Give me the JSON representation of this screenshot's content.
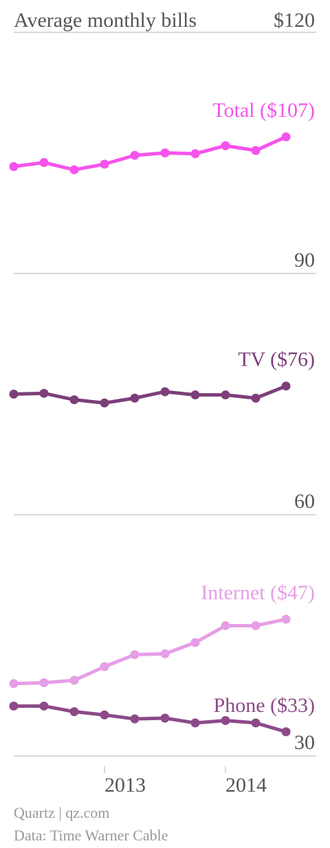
{
  "chart_data": {
    "type": "line",
    "title": "Average monthly bills",
    "categories": [
      null,
      null,
      null,
      "2013",
      null,
      null,
      null,
      "2014",
      null,
      null
    ],
    "series": [
      {
        "name": "Total ($107)",
        "color": "#f553ec",
        "values": [
          103.3,
          103.8,
          102.9,
          103.6,
          104.7,
          105.0,
          104.9,
          105.9,
          105.3,
          107
        ]
      },
      {
        "name": "TV ($76)",
        "color": "#7d3f7a",
        "values": [
          75.0,
          75.1,
          74.3,
          73.9,
          74.5,
          75.3,
          74.9,
          74.9,
          74.5,
          76
        ]
      },
      {
        "name": "Internet ($47)",
        "color": "#e69ee6",
        "values": [
          39.0,
          39.1,
          39.4,
          41.1,
          42.6,
          42.7,
          44.1,
          46.2,
          46.2,
          47
        ]
      },
      {
        "name": "Phone ($33)",
        "color": "#8c4a88",
        "values": [
          36.2,
          36.2,
          35.5,
          35.1,
          34.6,
          34.7,
          34.1,
          34.4,
          34.1,
          33
        ]
      }
    ],
    "ylim": [
      30,
      120
    ],
    "yticks": [
      {
        "value": 120,
        "label": "$120"
      },
      90,
      60,
      30
    ],
    "grid": true,
    "source": [
      "Quartz | qz.com",
      "Data: Time Warner Cable"
    ]
  }
}
